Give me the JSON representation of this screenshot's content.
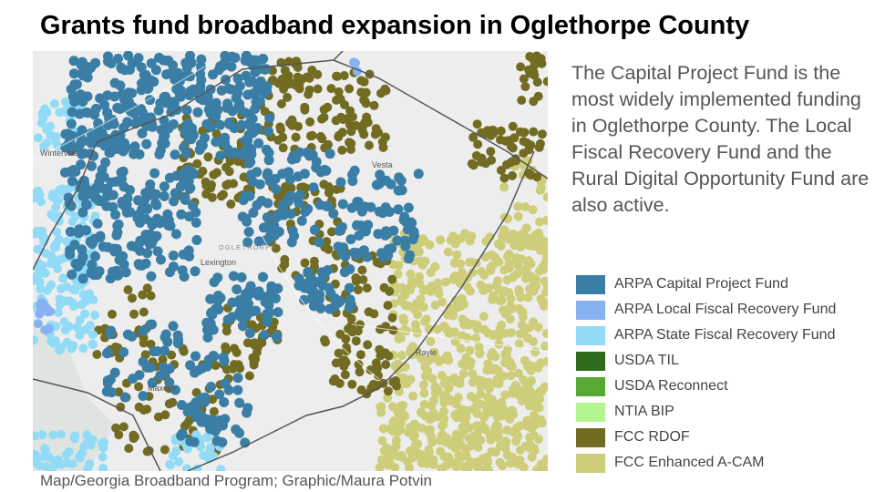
{
  "title": "Grants fund broadband expansion in Oglethorpe County",
  "description": "The Capital Project Fund is the most widely implemented funding in Oglethorpe County. The Local Fiscal Recovery Fund and the Rural Digital Opportunity Fund are also active.",
  "map": {
    "places": {
      "winterville": "Winterville",
      "vesta": "Vesta",
      "oglethorpe": "OGLETHORPE",
      "lexington": "Lexington",
      "rayle": "Rayle",
      "maxeys": "Maxeys"
    }
  },
  "legend": [
    {
      "label": "ARPA Capital Project Fund",
      "color": "#3a7ea6"
    },
    {
      "label": "ARPA Local Fiscal Recovery Fund",
      "color": "#86b2f2"
    },
    {
      "label": "ARPA State Fiscal Recovery Fund",
      "color": "#92dbf7"
    },
    {
      "label": "USDA TIL",
      "color": "#2f6b1c"
    },
    {
      "label": "USDA Reconnect",
      "color": "#56aa33"
    },
    {
      "label": "NTIA BIP",
      "color": "#b3f58f"
    },
    {
      "label": "FCC RDOF",
      "color": "#726b22"
    },
    {
      "label": "FCC Enhanced A-CAM",
      "color": "#cdcd7a"
    }
  ],
  "credit": "Map/Georgia Broadband Program; Graphic/Maura Potvin"
}
